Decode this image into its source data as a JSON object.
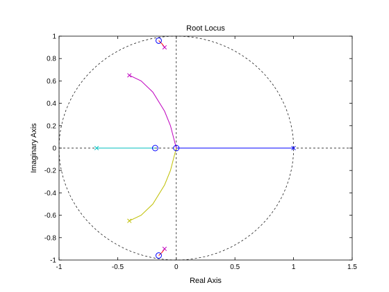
{
  "chart_data": {
    "type": "line",
    "title": "Root Locus",
    "xlabel": "Real Axis",
    "ylabel": "Imaginary Axis",
    "xlim": [
      -1,
      1.5
    ],
    "ylim": [
      -1,
      1
    ],
    "xticks": [
      -1,
      -0.5,
      0,
      0.5,
      1,
      1.5
    ],
    "xtick_labels": [
      "-1",
      "-0.5",
      "0",
      "0.5",
      "1",
      "1.5"
    ],
    "yticks": [
      -1,
      -0.8,
      -0.6,
      -0.4,
      -0.2,
      0,
      0.2,
      0.4,
      0.6,
      0.8,
      1
    ],
    "ytick_labels": [
      "-1",
      "-0.8",
      "-0.6",
      "-0.4",
      "-0.2",
      "0",
      "0.2",
      "0.4",
      "0.6",
      "0.8",
      "1"
    ],
    "grid": false,
    "unit_circle": true,
    "zero_reference_lines": true,
    "series": [
      {
        "color": "#0000ff",
        "x": [
          1.0,
          0.8,
          0.6,
          0.4,
          0.2,
          0.0
        ],
        "y": [
          0,
          0,
          0,
          0,
          0,
          0
        ]
      },
      {
        "color": "#00bfbf",
        "x": [
          -0.68,
          -0.5,
          -0.35,
          -0.22,
          -0.18
        ],
        "y": [
          0,
          0,
          0,
          0,
          0
        ]
      },
      {
        "color": "#bf00bf",
        "x": [
          -0.4,
          -0.3,
          -0.2,
          -0.1,
          -0.05,
          -0.02,
          0.0
        ],
        "y": [
          0.65,
          0.6,
          0.5,
          0.33,
          0.2,
          0.08,
          0.0
        ]
      },
      {
        "color": "#bfbf00",
        "x": [
          -0.4,
          -0.3,
          -0.2,
          -0.1,
          -0.05,
          -0.02,
          0.0
        ],
        "y": [
          -0.65,
          -0.6,
          -0.5,
          -0.33,
          -0.2,
          -0.08,
          0.0
        ]
      },
      {
        "color": "#ff0000",
        "x": [
          -0.1,
          -0.12,
          -0.15
        ],
        "y": [
          0.9,
          0.93,
          0.96
        ]
      },
      {
        "color": "#ff0000",
        "x": [
          -0.1,
          -0.12,
          -0.15
        ],
        "y": [
          -0.9,
          -0.93,
          -0.96
        ]
      }
    ],
    "poles": [
      {
        "x": 1.0,
        "y": 0,
        "color": "#0000ff"
      },
      {
        "x": -0.68,
        "y": 0,
        "color": "#00bfbf"
      },
      {
        "x": -0.4,
        "y": 0.65,
        "color": "#bf00bf"
      },
      {
        "x": -0.4,
        "y": -0.65,
        "color": "#bfbf00"
      },
      {
        "x": -0.1,
        "y": 0.9,
        "color": "#bf00bf"
      },
      {
        "x": -0.1,
        "y": -0.9,
        "color": "#bf00bf"
      }
    ],
    "zeros": [
      {
        "x": 0.0,
        "y": 0,
        "color": "#0000ff"
      },
      {
        "x": -0.18,
        "y": 0,
        "color": "#0000ff"
      },
      {
        "x": -0.15,
        "y": 0.96,
        "color": "#0000ff"
      },
      {
        "x": -0.15,
        "y": -0.96,
        "color": "#0000ff"
      }
    ]
  }
}
